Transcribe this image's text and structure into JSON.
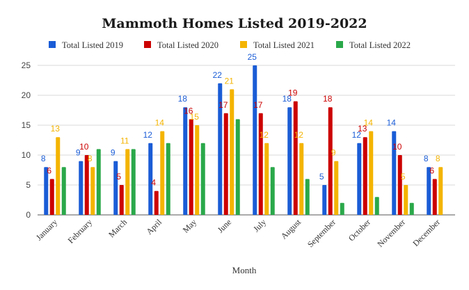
{
  "chart_data": {
    "type": "bar",
    "title": "Mammoth Homes Listed 2019-2022",
    "xlabel": "Month",
    "ylabel": "",
    "ylim": [
      0,
      25
    ],
    "yticks": [
      0,
      5,
      10,
      15,
      20,
      25
    ],
    "grid": true,
    "legend_position": "top",
    "categories": [
      "January",
      "February",
      "March",
      "April",
      "May",
      "June",
      "July",
      "August",
      "September",
      "October",
      "November",
      "December"
    ],
    "series": [
      {
        "name": "Total Listed 2019",
        "color": "#1a5cd6",
        "values": [
          8,
          9,
          9,
          12,
          18,
          22,
          25,
          18,
          5,
          12,
          14,
          8
        ]
      },
      {
        "name": "Total Listed 2020",
        "color": "#cc0000",
        "values": [
          6,
          10,
          5,
          4,
          16,
          17,
          17,
          19,
          18,
          13,
          10,
          6
        ]
      },
      {
        "name": "Total Listed 2021",
        "color": "#f4b400",
        "values": [
          13,
          8,
          11,
          14,
          15,
          21,
          12,
          12,
          9,
          14,
          5,
          8
        ]
      },
      {
        "name": "Total Listed 2022",
        "color": "#2aa84a",
        "values": [
          8,
          11,
          11,
          12,
          12,
          16,
          8,
          6,
          2,
          3,
          2,
          null
        ]
      }
    ],
    "data_labels": [
      [
        8,
        9,
        9,
        12,
        18,
        22,
        25,
        18,
        5,
        12,
        14,
        8
      ],
      [
        6,
        10,
        5,
        4,
        16,
        17,
        17,
        19,
        18,
        13,
        10,
        6
      ],
      [
        13,
        8,
        11,
        14,
        15,
        21,
        12,
        12,
        9,
        14,
        5,
        8
      ],
      [
        null,
        null,
        null,
        null,
        null,
        null,
        null,
        null,
        null,
        null,
        null,
        null
      ]
    ]
  }
}
